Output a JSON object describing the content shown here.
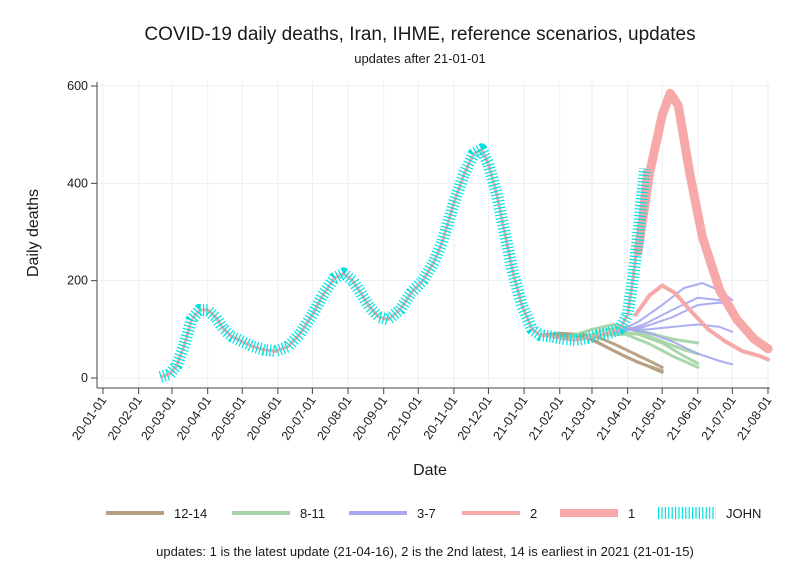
{
  "chart_data": {
    "type": "line",
    "title": "COVID-19 daily deaths, Iran, IHME, reference scenarios, updates",
    "subtitle": "updates after 21-01-01",
    "xlabel": "Date",
    "ylabel": "Daily deaths",
    "note": "updates: 1 is the latest update (21-04-16), 2 is the 2nd latest, 14 is earliest in 2021 (21-01-15)",
    "ylim": [
      0,
      600
    ],
    "yticks": [
      0,
      200,
      400,
      600
    ],
    "xlim": [
      "2020-01-01",
      "2021-08-01"
    ],
    "xticks": [
      "20-01-01",
      "20-02-01",
      "20-03-01",
      "20-04-01",
      "20-05-01",
      "20-06-01",
      "20-07-01",
      "20-08-01",
      "20-09-01",
      "20-10-01",
      "20-11-01",
      "20-12-01",
      "21-01-01",
      "21-02-01",
      "21-03-01",
      "21-04-01",
      "21-05-01",
      "21-06-01",
      "21-07-01",
      "21-08-01"
    ],
    "grid": true,
    "legend_position": "bottom",
    "legend": [
      {
        "label": "12-14",
        "color": "#b5a07f",
        "width": 4
      },
      {
        "label": "8-11",
        "color": "#a6d4a6",
        "width": 4
      },
      {
        "label": "3-7",
        "color": "#a9a9f0",
        "width": 4
      },
      {
        "label": "2",
        "color": "#f5a9a9",
        "width": 4
      },
      {
        "label": "1",
        "color": "#f7a8a8",
        "width": 8
      },
      {
        "label": "JOHN",
        "color": "#00e0e0",
        "width": 4,
        "style": "dashed"
      }
    ],
    "series": [
      {
        "name": "JOHN",
        "color": "#00e0e0",
        "points": [
          [
            "2020-02-20",
            2
          ],
          [
            "2020-02-28",
            8
          ],
          [
            "2020-03-05",
            25
          ],
          [
            "2020-03-12",
            70
          ],
          [
            "2020-03-18",
            120
          ],
          [
            "2020-03-25",
            140
          ],
          [
            "2020-04-01",
            140
          ],
          [
            "2020-04-08",
            125
          ],
          [
            "2020-04-15",
            100
          ],
          [
            "2020-04-22",
            85
          ],
          [
            "2020-05-01",
            75
          ],
          [
            "2020-05-10",
            65
          ],
          [
            "2020-05-20",
            58
          ],
          [
            "2020-05-30",
            55
          ],
          [
            "2020-06-10",
            65
          ],
          [
            "2020-06-20",
            90
          ],
          [
            "2020-07-01",
            130
          ],
          [
            "2020-07-10",
            170
          ],
          [
            "2020-07-20",
            205
          ],
          [
            "2020-07-28",
            215
          ],
          [
            "2020-08-05",
            200
          ],
          [
            "2020-08-12",
            175
          ],
          [
            "2020-08-20",
            145
          ],
          [
            "2020-08-28",
            125
          ],
          [
            "2020-09-05",
            120
          ],
          [
            "2020-09-15",
            140
          ],
          [
            "2020-09-25",
            175
          ],
          [
            "2020-10-05",
            200
          ],
          [
            "2020-10-15",
            240
          ],
          [
            "2020-10-22",
            280
          ],
          [
            "2020-11-01",
            360
          ],
          [
            "2020-11-10",
            420
          ],
          [
            "2020-11-18",
            460
          ],
          [
            "2020-11-25",
            470
          ],
          [
            "2020-12-01",
            440
          ],
          [
            "2020-12-08",
            380
          ],
          [
            "2020-12-15",
            300
          ],
          [
            "2020-12-22",
            220
          ],
          [
            "2020-12-30",
            150
          ],
          [
            "2021-01-08",
            100
          ],
          [
            "2021-01-15",
            88
          ],
          [
            "2021-01-25",
            85
          ],
          [
            "2021-02-05",
            80
          ],
          [
            "2021-02-15",
            78
          ],
          [
            "2021-02-25",
            82
          ],
          [
            "2021-03-05",
            88
          ],
          [
            "2021-03-15",
            92
          ],
          [
            "2021-03-25",
            100
          ],
          [
            "2021-04-01",
            130
          ],
          [
            "2021-04-06",
            210
          ],
          [
            "2021-04-10",
            290
          ],
          [
            "2021-04-13",
            360
          ],
          [
            "2021-04-16",
            430
          ]
        ]
      },
      {
        "name": "12-14",
        "color": "#b5a07f",
        "width": 3,
        "lines": [
          [
            [
              "2021-01-15",
              88
            ],
            [
              "2021-02-01",
              92
            ],
            [
              "2021-02-15",
              90
            ],
            [
              "2021-03-01",
              80
            ],
            [
              "2021-03-15",
              62
            ],
            [
              "2021-04-01",
              42
            ],
            [
              "2021-04-15",
              28
            ],
            [
              "2021-05-01",
              12
            ]
          ],
          [
            [
              "2021-01-25",
              86
            ],
            [
              "2021-02-10",
              88
            ],
            [
              "2021-02-25",
              82
            ],
            [
              "2021-03-10",
              68
            ],
            [
              "2021-03-25",
              50
            ],
            [
              "2021-04-10",
              32
            ],
            [
              "2021-05-01",
              15
            ]
          ],
          [
            [
              "2021-02-05",
              82
            ],
            [
              "2021-02-20",
              90
            ],
            [
              "2021-03-05",
              85
            ],
            [
              "2021-03-20",
              70
            ],
            [
              "2021-04-05",
              52
            ],
            [
              "2021-04-20",
              35
            ],
            [
              "2021-05-01",
              22
            ]
          ]
        ]
      },
      {
        "name": "8-11",
        "color": "#a6d4a6",
        "width": 3,
        "lines": [
          [
            [
              "2021-02-10",
              85
            ],
            [
              "2021-03-01",
              100
            ],
            [
              "2021-03-20",
              110
            ],
            [
              "2021-04-10",
              95
            ],
            [
              "2021-05-01",
              75
            ],
            [
              "2021-05-20",
              58
            ],
            [
              "2021-06-01",
              50
            ]
          ],
          [
            [
              "2021-02-20",
              80
            ],
            [
              "2021-03-10",
              98
            ],
            [
              "2021-03-30",
              105
            ],
            [
              "2021-04-20",
              92
            ],
            [
              "2021-05-10",
              80
            ],
            [
              "2021-06-01",
              72
            ]
          ],
          [
            [
              "2021-03-01",
              86
            ],
            [
              "2021-03-20",
              95
            ],
            [
              "2021-04-10",
              90
            ],
            [
              "2021-05-01",
              72
            ],
            [
              "2021-05-20",
              45
            ],
            [
              "2021-06-01",
              30
            ]
          ],
          [
            [
              "2021-03-10",
              88
            ],
            [
              "2021-03-30",
              90
            ],
            [
              "2021-04-20",
              70
            ],
            [
              "2021-05-10",
              45
            ],
            [
              "2021-06-01",
              22
            ]
          ]
        ]
      },
      {
        "name": "3-7",
        "color": "#a9a9f0",
        "width": 2,
        "lines": [
          [
            [
              "2021-03-20",
              92
            ],
            [
              "2021-04-10",
              115
            ],
            [
              "2021-05-01",
              150
            ],
            [
              "2021-05-20",
              185
            ],
            [
              "2021-06-05",
              195
            ],
            [
              "2021-06-20",
              180
            ],
            [
              "2021-07-01",
              160
            ]
          ],
          [
            [
              "2021-03-25",
              95
            ],
            [
              "2021-04-15",
              110
            ],
            [
              "2021-05-10",
              140
            ],
            [
              "2021-06-01",
              165
            ],
            [
              "2021-06-20",
              160
            ],
            [
              "2021-07-01",
              145
            ]
          ],
          [
            [
              "2021-03-25",
              95
            ],
            [
              "2021-04-15",
              105
            ],
            [
              "2021-05-10",
              125
            ],
            [
              "2021-06-01",
              150
            ],
            [
              "2021-06-20",
              155
            ],
            [
              "2021-07-01",
              150
            ]
          ],
          [
            [
              "2021-03-30",
              98
            ],
            [
              "2021-04-20",
              100
            ],
            [
              "2021-05-10",
              105
            ],
            [
              "2021-06-01",
              110
            ],
            [
              "2021-06-20",
              105
            ],
            [
              "2021-07-01",
              95
            ]
          ],
          [
            [
              "2021-04-01",
              100
            ],
            [
              "2021-04-20",
              92
            ],
            [
              "2021-05-10",
              75
            ],
            [
              "2021-06-01",
              50
            ],
            [
              "2021-06-20",
              35
            ],
            [
              "2021-07-01",
              28
            ]
          ]
        ]
      },
      {
        "name": "2",
        "color": "#f5a9a9",
        "width": 4,
        "points": [
          [
            "2021-04-08",
            130
          ],
          [
            "2021-04-20",
            170
          ],
          [
            "2021-05-01",
            190
          ],
          [
            "2021-05-12",
            175
          ],
          [
            "2021-05-25",
            140
          ],
          [
            "2021-06-10",
            100
          ],
          [
            "2021-06-25",
            75
          ],
          [
            "2021-07-10",
            55
          ],
          [
            "2021-07-25",
            45
          ],
          [
            "2021-08-01",
            38
          ]
        ]
      },
      {
        "name": "1",
        "color": "#f7a8a8",
        "width": 9,
        "points": [
          [
            "2021-04-10",
            260
          ],
          [
            "2021-04-20",
            420
          ],
          [
            "2021-05-01",
            540
          ],
          [
            "2021-05-08",
            585
          ],
          [
            "2021-05-15",
            560
          ],
          [
            "2021-05-25",
            420
          ],
          [
            "2021-06-05",
            290
          ],
          [
            "2021-06-20",
            180
          ],
          [
            "2021-07-05",
            120
          ],
          [
            "2021-07-20",
            80
          ],
          [
            "2021-08-01",
            60
          ]
        ]
      }
    ]
  }
}
